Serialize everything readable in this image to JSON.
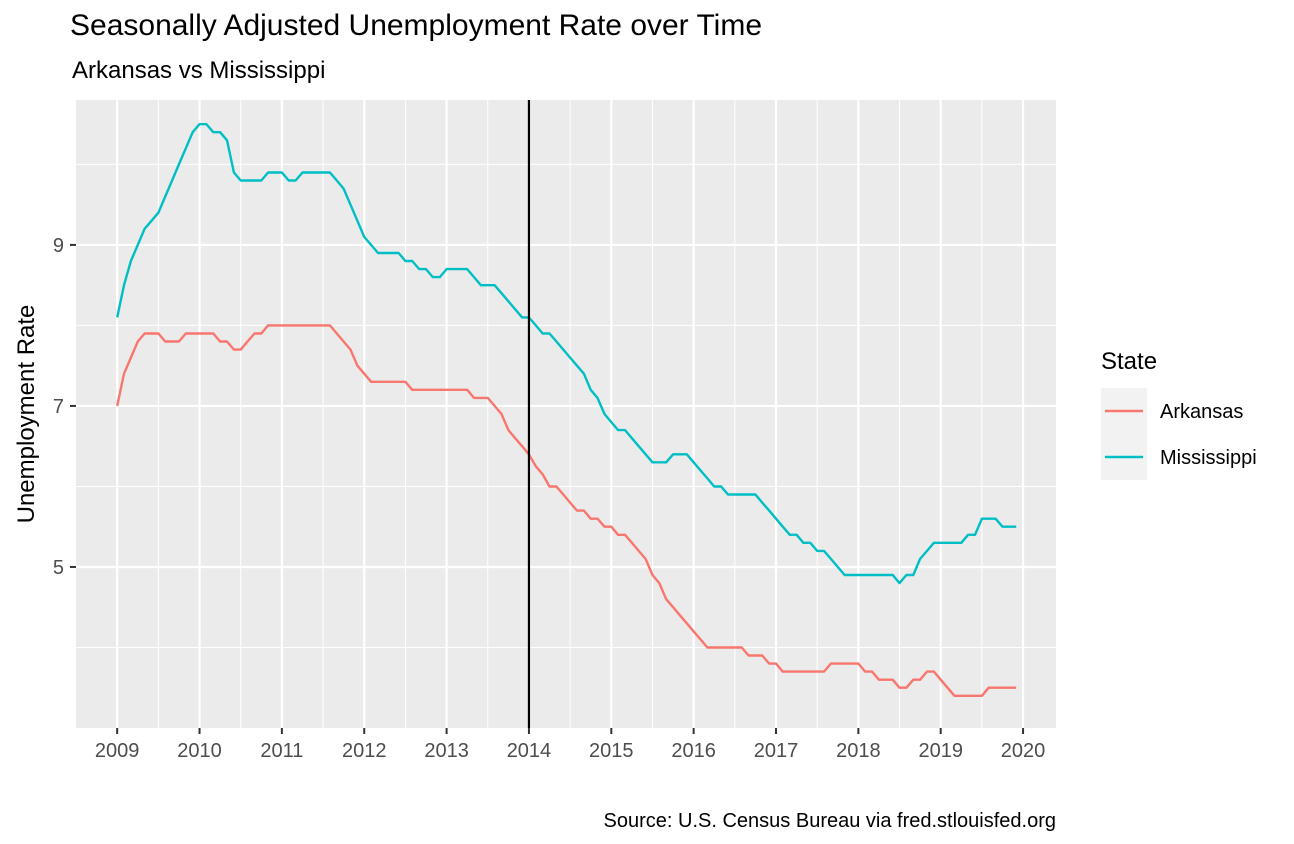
{
  "chart_data": {
    "type": "line",
    "title": "Seasonally Adjusted Unemployment Rate over Time",
    "subtitle": "Arkansas vs Mississippi",
    "xlabel": "",
    "ylabel": "Unemployment Rate",
    "caption": "Source: U.S. Census Bureau via fred.stlouisfed.org",
    "x_ticks": [
      "2009",
      "2010",
      "2011",
      "2012",
      "2013",
      "2014",
      "2015",
      "2016",
      "2017",
      "2018",
      "2019",
      "2020"
    ],
    "y_ticks": [
      "5",
      "7",
      "9"
    ],
    "xlim": [
      2008.5,
      2020.4
    ],
    "ylim": [
      3.0,
      10.8
    ],
    "grid": true,
    "vline": {
      "x": 2014.0,
      "color": "#000000"
    },
    "legend": {
      "title": "State",
      "position": "right"
    },
    "series": [
      {
        "name": "Arkansas",
        "color": "#F8766D",
        "points": [
          [
            2009.0,
            7.0
          ],
          [
            2009.083,
            7.4
          ],
          [
            2009.167,
            7.6
          ],
          [
            2009.25,
            7.8
          ],
          [
            2009.333,
            7.9
          ],
          [
            2009.417,
            7.9
          ],
          [
            2009.5,
            7.9
          ],
          [
            2009.583,
            7.8
          ],
          [
            2009.667,
            7.8
          ],
          [
            2009.75,
            7.8
          ],
          [
            2009.833,
            7.9
          ],
          [
            2009.917,
            7.9
          ],
          [
            2010.0,
            7.9
          ],
          [
            2010.083,
            7.9
          ],
          [
            2010.167,
            7.9
          ],
          [
            2010.25,
            7.8
          ],
          [
            2010.333,
            7.8
          ],
          [
            2010.417,
            7.7
          ],
          [
            2010.5,
            7.7
          ],
          [
            2010.583,
            7.8
          ],
          [
            2010.667,
            7.9
          ],
          [
            2010.75,
            7.9
          ],
          [
            2010.833,
            8.0
          ],
          [
            2010.917,
            8.0
          ],
          [
            2011.0,
            8.0
          ],
          [
            2011.25,
            8.0
          ],
          [
            2011.5,
            8.0
          ],
          [
            2011.583,
            8.0
          ],
          [
            2011.667,
            7.9
          ],
          [
            2011.75,
            7.8
          ],
          [
            2011.833,
            7.7
          ],
          [
            2011.917,
            7.5
          ],
          [
            2012.0,
            7.4
          ],
          [
            2012.083,
            7.3
          ],
          [
            2012.25,
            7.3
          ],
          [
            2012.5,
            7.3
          ],
          [
            2012.583,
            7.2
          ],
          [
            2012.75,
            7.2
          ],
          [
            2013.0,
            7.2
          ],
          [
            2013.25,
            7.2
          ],
          [
            2013.333,
            7.1
          ],
          [
            2013.417,
            7.1
          ],
          [
            2013.5,
            7.1
          ],
          [
            2013.583,
            7.0
          ],
          [
            2013.667,
            6.9
          ],
          [
            2013.75,
            6.7
          ],
          [
            2013.833,
            6.6
          ],
          [
            2013.917,
            6.5
          ],
          [
            2014.0,
            6.4
          ],
          [
            2014.083,
            6.25
          ],
          [
            2014.167,
            6.15
          ],
          [
            2014.25,
            6.0
          ],
          [
            2014.333,
            6.0
          ],
          [
            2014.417,
            5.9
          ],
          [
            2014.5,
            5.8
          ],
          [
            2014.583,
            5.7
          ],
          [
            2014.667,
            5.7
          ],
          [
            2014.75,
            5.6
          ],
          [
            2014.833,
            5.6
          ],
          [
            2014.917,
            5.5
          ],
          [
            2015.0,
            5.5
          ],
          [
            2015.083,
            5.4
          ],
          [
            2015.167,
            5.4
          ],
          [
            2015.25,
            5.3
          ],
          [
            2015.333,
            5.2
          ],
          [
            2015.417,
            5.1
          ],
          [
            2015.5,
            4.9
          ],
          [
            2015.583,
            4.8
          ],
          [
            2015.667,
            4.6
          ],
          [
            2015.75,
            4.5
          ],
          [
            2015.833,
            4.4
          ],
          [
            2015.917,
            4.3
          ],
          [
            2016.0,
            4.2
          ],
          [
            2016.083,
            4.1
          ],
          [
            2016.167,
            4.0
          ],
          [
            2016.25,
            4.0
          ],
          [
            2016.5,
            4.0
          ],
          [
            2016.583,
            4.0
          ],
          [
            2016.667,
            3.9
          ],
          [
            2016.75,
            3.9
          ],
          [
            2016.833,
            3.9
          ],
          [
            2016.917,
            3.8
          ],
          [
            2017.0,
            3.8
          ],
          [
            2017.083,
            3.7
          ],
          [
            2017.25,
            3.7
          ],
          [
            2017.5,
            3.7
          ],
          [
            2017.583,
            3.7
          ],
          [
            2017.667,
            3.8
          ],
          [
            2017.75,
            3.8
          ],
          [
            2017.917,
            3.8
          ],
          [
            2018.0,
            3.8
          ],
          [
            2018.083,
            3.7
          ],
          [
            2018.167,
            3.7
          ],
          [
            2018.25,
            3.6
          ],
          [
            2018.333,
            3.6
          ],
          [
            2018.417,
            3.6
          ],
          [
            2018.5,
            3.5
          ],
          [
            2018.583,
            3.5
          ],
          [
            2018.667,
            3.6
          ],
          [
            2018.75,
            3.6
          ],
          [
            2018.833,
            3.7
          ],
          [
            2018.917,
            3.7
          ],
          [
            2019.0,
            3.6
          ],
          [
            2019.083,
            3.5
          ],
          [
            2019.167,
            3.4
          ],
          [
            2019.25,
            3.4
          ],
          [
            2019.5,
            3.4
          ],
          [
            2019.583,
            3.5
          ],
          [
            2019.667,
            3.5
          ],
          [
            2019.917,
            3.5
          ]
        ]
      },
      {
        "name": "Mississippi",
        "color": "#00BFC4",
        "points": [
          [
            2009.0,
            8.1
          ],
          [
            2009.083,
            8.5
          ],
          [
            2009.167,
            8.8
          ],
          [
            2009.25,
            9.0
          ],
          [
            2009.333,
            9.2
          ],
          [
            2009.417,
            9.3
          ],
          [
            2009.5,
            9.4
          ],
          [
            2009.583,
            9.6
          ],
          [
            2009.667,
            9.8
          ],
          [
            2009.75,
            10.0
          ],
          [
            2009.833,
            10.2
          ],
          [
            2009.917,
            10.4
          ],
          [
            2010.0,
            10.5
          ],
          [
            2010.083,
            10.5
          ],
          [
            2010.167,
            10.4
          ],
          [
            2010.25,
            10.4
          ],
          [
            2010.333,
            10.3
          ],
          [
            2010.417,
            9.9
          ],
          [
            2010.5,
            9.8
          ],
          [
            2010.583,
            9.8
          ],
          [
            2010.75,
            9.8
          ],
          [
            2010.833,
            9.9
          ],
          [
            2010.917,
            9.9
          ],
          [
            2011.0,
            9.9
          ],
          [
            2011.083,
            9.8
          ],
          [
            2011.167,
            9.8
          ],
          [
            2011.25,
            9.9
          ],
          [
            2011.333,
            9.9
          ],
          [
            2011.583,
            9.9
          ],
          [
            2011.667,
            9.8
          ],
          [
            2011.75,
            9.7
          ],
          [
            2011.833,
            9.5
          ],
          [
            2011.917,
            9.3
          ],
          [
            2012.0,
            9.1
          ],
          [
            2012.083,
            9.0
          ],
          [
            2012.167,
            8.9
          ],
          [
            2012.25,
            8.9
          ],
          [
            2012.417,
            8.9
          ],
          [
            2012.5,
            8.8
          ],
          [
            2012.583,
            8.8
          ],
          [
            2012.667,
            8.7
          ],
          [
            2012.75,
            8.7
          ],
          [
            2012.833,
            8.6
          ],
          [
            2012.917,
            8.6
          ],
          [
            2013.0,
            8.7
          ],
          [
            2013.083,
            8.7
          ],
          [
            2013.25,
            8.7
          ],
          [
            2013.333,
            8.6
          ],
          [
            2013.417,
            8.5
          ],
          [
            2013.5,
            8.5
          ],
          [
            2013.583,
            8.5
          ],
          [
            2013.667,
            8.4
          ],
          [
            2013.75,
            8.3
          ],
          [
            2013.833,
            8.2
          ],
          [
            2013.917,
            8.1
          ],
          [
            2014.0,
            8.1
          ],
          [
            2014.083,
            8.0
          ],
          [
            2014.167,
            7.9
          ],
          [
            2014.25,
            7.9
          ],
          [
            2014.333,
            7.8
          ],
          [
            2014.417,
            7.7
          ],
          [
            2014.5,
            7.6
          ],
          [
            2014.583,
            7.5
          ],
          [
            2014.667,
            7.4
          ],
          [
            2014.75,
            7.2
          ],
          [
            2014.833,
            7.1
          ],
          [
            2014.917,
            6.9
          ],
          [
            2015.0,
            6.8
          ],
          [
            2015.083,
            6.7
          ],
          [
            2015.167,
            6.7
          ],
          [
            2015.25,
            6.6
          ],
          [
            2015.333,
            6.5
          ],
          [
            2015.417,
            6.4
          ],
          [
            2015.5,
            6.3
          ],
          [
            2015.583,
            6.3
          ],
          [
            2015.667,
            6.3
          ],
          [
            2015.75,
            6.4
          ],
          [
            2015.833,
            6.4
          ],
          [
            2015.917,
            6.4
          ],
          [
            2016.0,
            6.3
          ],
          [
            2016.083,
            6.2
          ],
          [
            2016.167,
            6.1
          ],
          [
            2016.25,
            6.0
          ],
          [
            2016.333,
            6.0
          ],
          [
            2016.417,
            5.9
          ],
          [
            2016.5,
            5.9
          ],
          [
            2016.75,
            5.9
          ],
          [
            2016.833,
            5.8
          ],
          [
            2016.917,
            5.7
          ],
          [
            2017.0,
            5.6
          ],
          [
            2017.083,
            5.5
          ],
          [
            2017.167,
            5.4
          ],
          [
            2017.25,
            5.4
          ],
          [
            2017.333,
            5.3
          ],
          [
            2017.417,
            5.3
          ],
          [
            2017.5,
            5.2
          ],
          [
            2017.583,
            5.2
          ],
          [
            2017.667,
            5.1
          ],
          [
            2017.75,
            5.0
          ],
          [
            2017.833,
            4.9
          ],
          [
            2017.917,
            4.9
          ],
          [
            2018.0,
            4.9
          ],
          [
            2018.417,
            4.9
          ],
          [
            2018.5,
            4.8
          ],
          [
            2018.583,
            4.9
          ],
          [
            2018.667,
            4.9
          ],
          [
            2018.75,
            5.1
          ],
          [
            2018.833,
            5.2
          ],
          [
            2018.917,
            5.3
          ],
          [
            2019.0,
            5.3
          ],
          [
            2019.25,
            5.3
          ],
          [
            2019.333,
            5.4
          ],
          [
            2019.417,
            5.4
          ],
          [
            2019.5,
            5.6
          ],
          [
            2019.583,
            5.6
          ],
          [
            2019.667,
            5.6
          ],
          [
            2019.75,
            5.5
          ],
          [
            2019.917,
            5.5
          ]
        ]
      }
    ]
  }
}
